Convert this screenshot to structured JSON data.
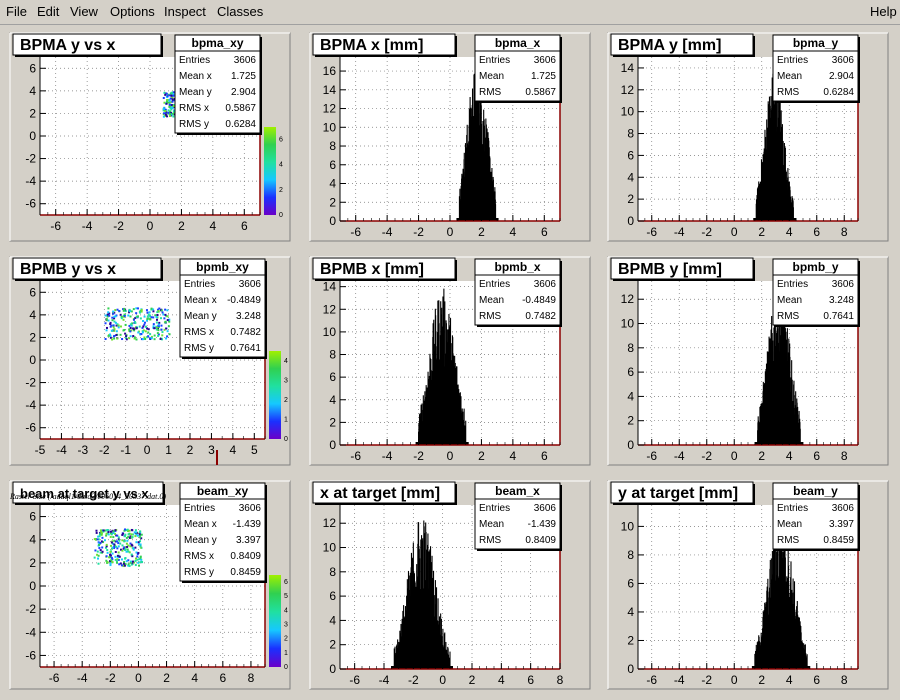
{
  "menu": {
    "items": [
      "File",
      "Edit",
      "View",
      "Options",
      "Inspect",
      "Classes"
    ],
    "help": "Help"
  },
  "footer_label": "Raster Size (/adaql1/data3/e06014_20537.dat.0)",
  "colors": {
    "frame": "#b00000",
    "stats_bg": "#ffffff",
    "hist_fill": "#000000",
    "bg": "#d4d0c8"
  },
  "chart_data": [
    {
      "type": "heatmap",
      "title": "BPMA y vs x",
      "stats_name": "bpma_xy",
      "stats": [
        [
          "Entries",
          "3606"
        ],
        [
          "Mean x",
          "1.725"
        ],
        [
          "Mean y",
          "2.904"
        ],
        [
          "RMS x",
          "0.5867"
        ],
        [
          "RMS y",
          "0.6284"
        ]
      ],
      "xlim": [
        -7,
        7
      ],
      "ylim": [
        -7,
        7
      ],
      "xticks": [
        -6,
        -4,
        -2,
        0,
        2,
        4,
        6
      ],
      "yticks": [
        -6,
        -4,
        -2,
        0,
        2,
        4,
        6
      ],
      "cloud": {
        "xmin": 0.8,
        "xmax": 2.6,
        "ymin": 1.8,
        "ymax": 4.0
      },
      "palette_ticks": [
        "0",
        "2",
        "4",
        "6"
      ],
      "grid": true
    },
    {
      "type": "bar",
      "title": "BPMA x [mm]",
      "stats_name": "bpma_x",
      "stats": [
        [
          "Entries",
          "3606"
        ],
        [
          "Mean",
          "1.725"
        ],
        [
          "RMS",
          "0.5867"
        ]
      ],
      "xlim": [
        -7,
        7
      ],
      "ylim": [
        0,
        17.5
      ],
      "xticks": [
        -6,
        -4,
        -2,
        0,
        2,
        4,
        6
      ],
      "yticks": [
        0,
        2,
        4,
        6,
        8,
        10,
        12,
        14,
        16
      ],
      "dist": {
        "mean": 1.725,
        "rms": 0.5867,
        "peak": 17,
        "lo": 0.6,
        "hi": 2.9
      },
      "grid": true
    },
    {
      "type": "bar",
      "title": "BPMA y [mm]",
      "stats_name": "bpma_y",
      "stats": [
        [
          "Entries",
          "3606"
        ],
        [
          "Mean",
          "2.904"
        ],
        [
          "RMS",
          "0.6284"
        ]
      ],
      "xlim": [
        -7,
        9
      ],
      "ylim": [
        0,
        15
      ],
      "xticks": [
        -6,
        -4,
        -2,
        0,
        2,
        4,
        6,
        8
      ],
      "yticks": [
        0,
        2,
        4,
        6,
        8,
        10,
        12,
        14
      ],
      "dist": {
        "mean": 2.904,
        "rms": 0.6284,
        "peak": 14,
        "lo": 1.6,
        "hi": 4.3
      },
      "grid": true
    },
    {
      "type": "heatmap",
      "title": "BPMB y vs x",
      "stats_name": "bpmb_xy",
      "stats": [
        [
          "Entries",
          "3606"
        ],
        [
          "Mean x",
          "-0.4849"
        ],
        [
          "Mean y",
          "3.248"
        ],
        [
          "RMS x",
          "0.7482"
        ],
        [
          "RMS y",
          "0.7641"
        ]
      ],
      "xlim": [
        -5,
        5.5
      ],
      "ylim": [
        -7,
        7
      ],
      "xticks": [
        -5,
        -4,
        -3,
        -2,
        -1,
        0,
        1,
        2,
        3,
        4,
        5
      ],
      "yticks": [
        -6,
        -4,
        -2,
        0,
        2,
        4,
        6
      ],
      "cloud": {
        "xmin": -2.0,
        "xmax": 1.0,
        "ymin": 1.9,
        "ymax": 4.7
      },
      "palette_ticks": [
        "0",
        "1",
        "2",
        "3",
        "4"
      ],
      "grid": true
    },
    {
      "type": "bar",
      "title": "BPMB x [mm]",
      "stats_name": "bpmb_x",
      "stats": [
        [
          "Entries",
          "3606"
        ],
        [
          "Mean",
          "-0.4849"
        ],
        [
          "RMS",
          "0.7482"
        ]
      ],
      "xlim": [
        -7,
        7
      ],
      "ylim": [
        0,
        14.5
      ],
      "xticks": [
        -6,
        -4,
        -2,
        0,
        2,
        4,
        6
      ],
      "yticks": [
        0,
        2,
        4,
        6,
        8,
        10,
        12,
        14
      ],
      "dist": {
        "mean": -0.4849,
        "rms": 0.7482,
        "peak": 14,
        "lo": -2.0,
        "hi": 1.0
      },
      "grid": true
    },
    {
      "type": "bar",
      "title": "BPMB y [mm]",
      "stats_name": "bpmb_y",
      "stats": [
        [
          "Entries",
          "3606"
        ],
        [
          "Mean",
          "3.248"
        ],
        [
          "RMS",
          "0.7641"
        ]
      ],
      "xlim": [
        -7,
        9
      ],
      "ylim": [
        0,
        13.5
      ],
      "xticks": [
        -6,
        -4,
        -2,
        0,
        2,
        4,
        6,
        8
      ],
      "yticks": [
        0,
        2,
        4,
        6,
        8,
        10,
        12
      ],
      "dist": {
        "mean": 3.248,
        "rms": 0.7641,
        "peak": 13,
        "lo": 1.7,
        "hi": 4.8
      },
      "grid": true
    },
    {
      "type": "heatmap",
      "title": "beam at target y vs x",
      "stats_name": "beam_xy",
      "stats": [
        [
          "Entries",
          "3606"
        ],
        [
          "Mean x",
          "-1.439"
        ],
        [
          "Mean y",
          "3.397"
        ],
        [
          "RMS x",
          "0.8409"
        ],
        [
          "RMS y",
          "0.8459"
        ]
      ],
      "xlim": [
        -7,
        9
      ],
      "ylim": [
        -7,
        7
      ],
      "xticks": [
        -6,
        -4,
        -2,
        0,
        2,
        4,
        6,
        8
      ],
      "yticks": [
        -6,
        -4,
        -2,
        0,
        2,
        4,
        6
      ],
      "cloud": {
        "xmin": -3.2,
        "xmax": 0.2,
        "ymin": 1.8,
        "ymax": 5.0
      },
      "palette_ticks": [
        "0",
        "1",
        "2",
        "3",
        "4",
        "5",
        "6"
      ],
      "grid": true
    },
    {
      "type": "bar",
      "title": "x at target [mm]",
      "stats_name": "beam_x",
      "stats": [
        [
          "Entries",
          "3606"
        ],
        [
          "Mean",
          "-1.439"
        ],
        [
          "RMS",
          "0.8409"
        ]
      ],
      "xlim": [
        -7,
        8
      ],
      "ylim": [
        0,
        13.5
      ],
      "xticks": [
        -6,
        -4,
        -2,
        0,
        2,
        4,
        6,
        8
      ],
      "yticks": [
        0,
        2,
        4,
        6,
        8,
        10,
        12
      ],
      "dist": {
        "mean": -1.439,
        "rms": 0.8409,
        "peak": 13,
        "lo": -3.3,
        "hi": 0.5
      },
      "grid": true
    },
    {
      "type": "bar",
      "title": "y at target [mm]",
      "stats_name": "beam_y",
      "stats": [
        [
          "Entries",
          "3606"
        ],
        [
          "Mean",
          "3.397"
        ],
        [
          "RMS",
          "0.8459"
        ]
      ],
      "xlim": [
        -7,
        9
      ],
      "ylim": [
        0,
        11.5
      ],
      "xticks": [
        -6,
        -4,
        -2,
        0,
        2,
        4,
        6,
        8
      ],
      "yticks": [
        0,
        2,
        4,
        6,
        8,
        10
      ],
      "dist": {
        "mean": 3.397,
        "rms": 0.8459,
        "peak": 11,
        "lo": 1.5,
        "hi": 5.3
      },
      "grid": true
    }
  ]
}
